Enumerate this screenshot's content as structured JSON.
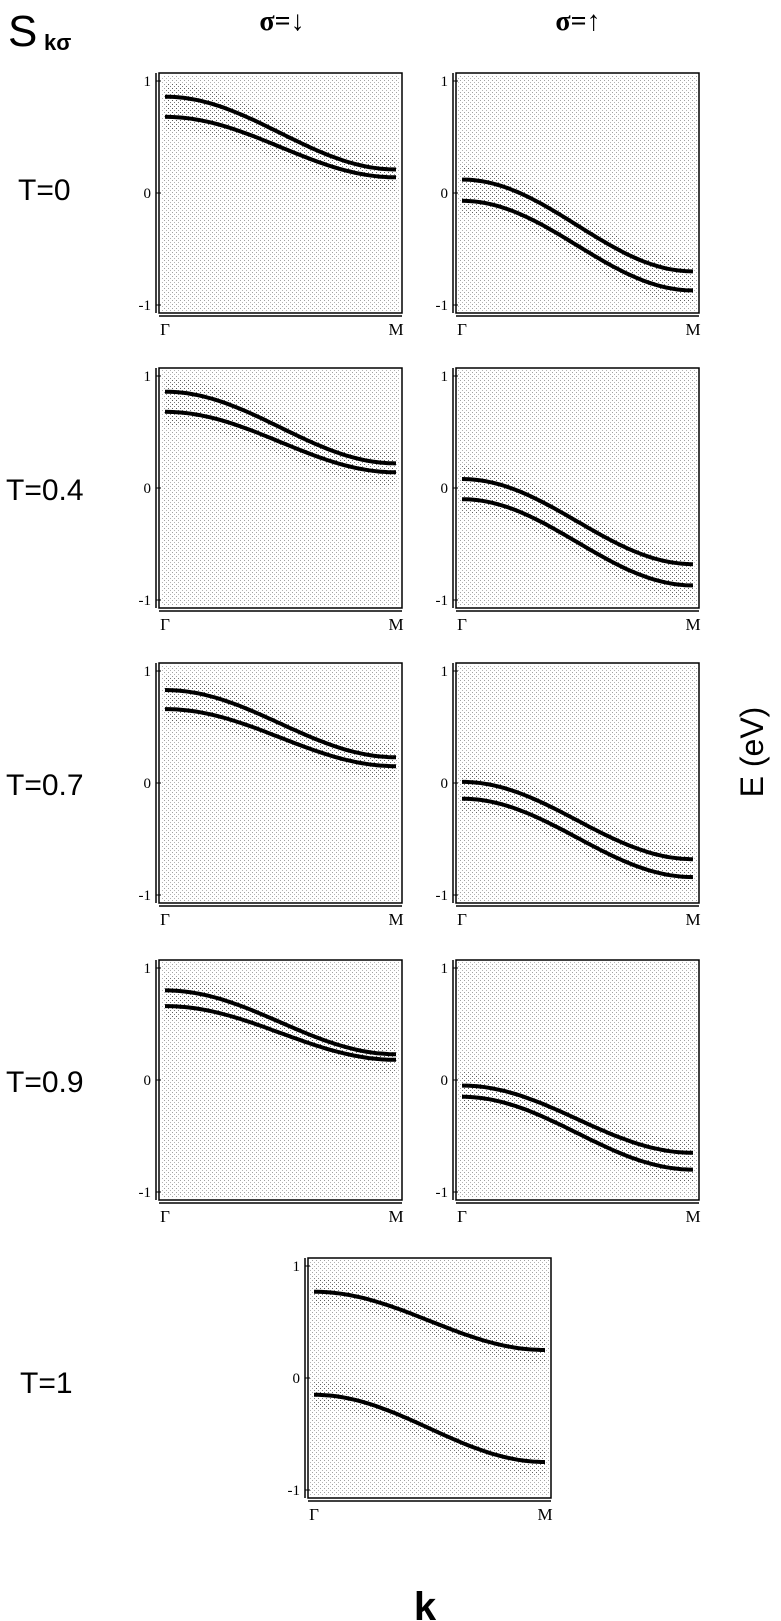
{
  "figure": {
    "corner_label_main": "S",
    "corner_label_sub": "kσ",
    "col_headers": [
      "σ=↓",
      "σ=↑"
    ],
    "row_labels": [
      "T=0",
      "T=0.4",
      "T=0.7",
      "T=0.9",
      "T=1"
    ],
    "ylabel": "E (eV)",
    "xlabel": "k"
  },
  "chart_data": {
    "type": "line",
    "x_ticks": [
      "Γ",
      "M"
    ],
    "y_ticks": [
      "1",
      "0",
      "-1"
    ],
    "ylim": [
      -1,
      1
    ],
    "panels": [
      {
        "row": "T=0",
        "spin": "↓",
        "series": [
          {
            "x": [
              0,
              1
            ],
            "start": 0.86,
            "end": 0.21
          },
          {
            "x": [
              0,
              1
            ],
            "start": 0.68,
            "end": 0.14
          }
        ]
      },
      {
        "row": "T=0",
        "spin": "↑",
        "series": [
          {
            "x": [
              0,
              1
            ],
            "start": 0.12,
            "end": -0.7
          },
          {
            "x": [
              0,
              1
            ],
            "start": -0.07,
            "end": -0.87
          }
        ]
      },
      {
        "row": "T=0.4",
        "spin": "↓",
        "series": [
          {
            "x": [
              0,
              1
            ],
            "start": 0.86,
            "end": 0.22
          },
          {
            "x": [
              0,
              1
            ],
            "start": 0.68,
            "end": 0.14
          }
        ]
      },
      {
        "row": "T=0.4",
        "spin": "↑",
        "series": [
          {
            "x": [
              0,
              1
            ],
            "start": 0.08,
            "end": -0.68
          },
          {
            "x": [
              0,
              1
            ],
            "start": -0.1,
            "end": -0.87
          }
        ]
      },
      {
        "row": "T=0.7",
        "spin": "↓",
        "series": [
          {
            "x": [
              0,
              1
            ],
            "start": 0.83,
            "end": 0.23
          },
          {
            "x": [
              0,
              1
            ],
            "start": 0.66,
            "end": 0.15
          }
        ]
      },
      {
        "row": "T=0.7",
        "spin": "↑",
        "series": [
          {
            "x": [
              0,
              1
            ],
            "start": 0.01,
            "end": -0.68
          },
          {
            "x": [
              0,
              1
            ],
            "start": -0.14,
            "end": -0.84
          }
        ]
      },
      {
        "row": "T=0.9",
        "spin": "↓",
        "series": [
          {
            "x": [
              0,
              1
            ],
            "start": 0.8,
            "end": 0.23
          },
          {
            "x": [
              0,
              1
            ],
            "start": 0.66,
            "end": 0.18
          }
        ]
      },
      {
        "row": "T=0.9",
        "spin": "↑",
        "series": [
          {
            "x": [
              0,
              1
            ],
            "start": -0.05,
            "end": -0.65
          },
          {
            "x": [
              0,
              1
            ],
            "start": -0.15,
            "end": -0.8
          }
        ]
      },
      {
        "row": "T=1",
        "spin": "",
        "series": [
          {
            "x": [
              0,
              1
            ],
            "start": 0.77,
            "end": 0.25
          },
          {
            "x": [
              0,
              1
            ],
            "start": -0.15,
            "end": -0.75
          }
        ]
      }
    ]
  }
}
